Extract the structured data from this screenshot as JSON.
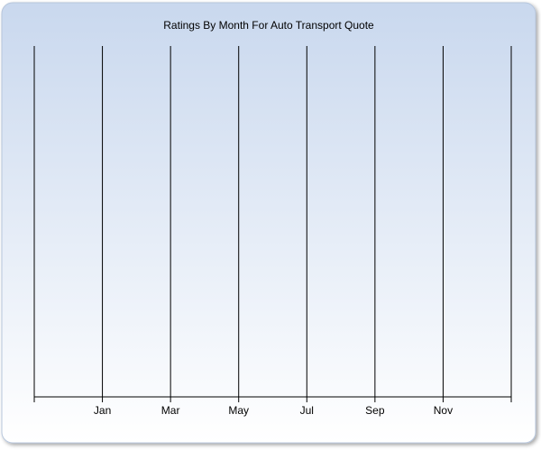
{
  "chart_data": {
    "type": "line",
    "title": "Ratings By Month For Auto Transport Quote",
    "categories": [
      null,
      "Jan",
      "Mar",
      "May",
      "Jul",
      "Sep",
      "Nov",
      null
    ],
    "grid": true
  }
}
